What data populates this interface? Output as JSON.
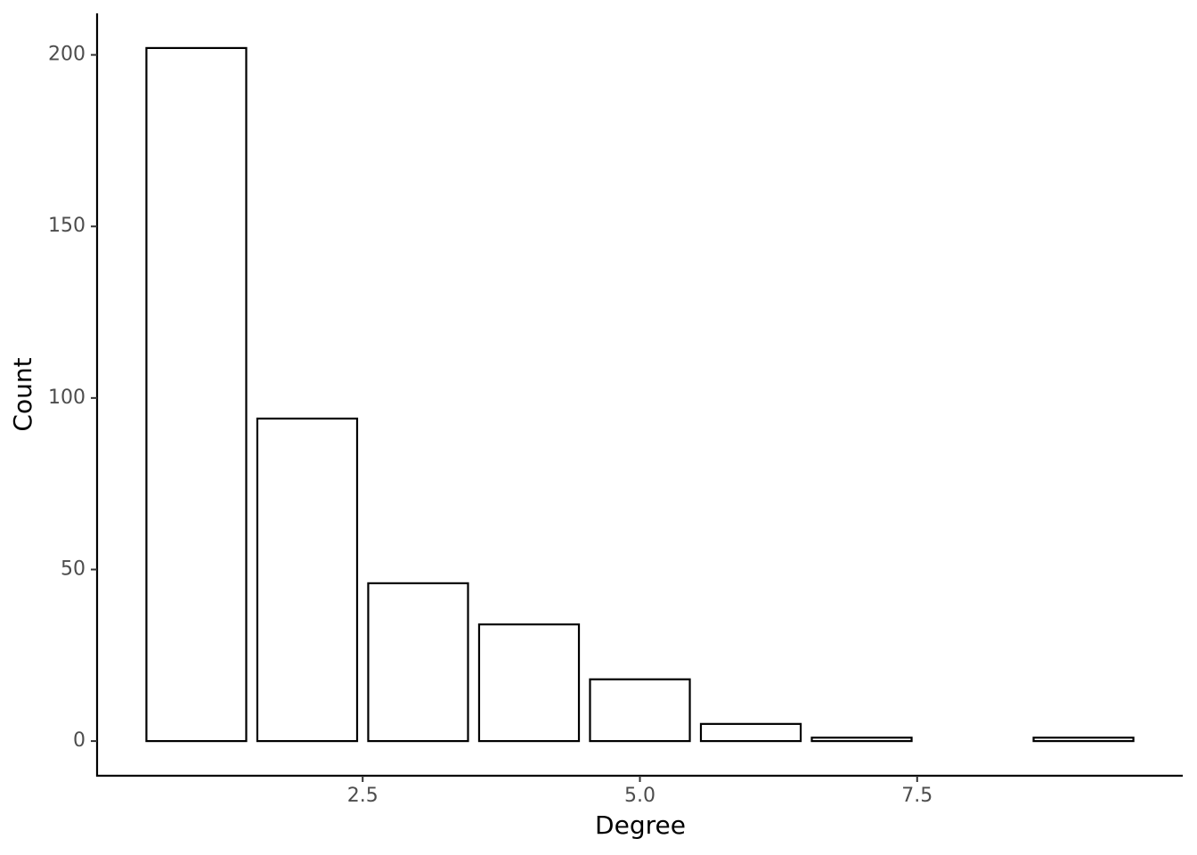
{
  "chart_data": {
    "type": "bar",
    "x_label": "Degree",
    "y_label": "Count",
    "x": [
      1,
      2,
      3,
      4,
      5,
      6,
      7,
      9
    ],
    "values": [
      202,
      94,
      46,
      34,
      18,
      5,
      1,
      1
    ],
    "color": "#ffffff",
    "edge_color": "#000000",
    "xlim": [
      0.105,
      9.895
    ],
    "xticks": [
      2.5,
      {
        "value": 5,
        "label": "5.0"
      },
      7.5
    ],
    "ylim": [
      -10.1,
      212.1
    ],
    "yticks": [
      0,
      50,
      100,
      150,
      200
    ],
    "grid": false
  }
}
